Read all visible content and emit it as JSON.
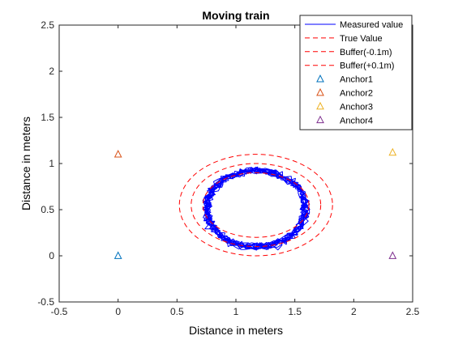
{
  "chart_data": {
    "type": "line",
    "title": "Moving train",
    "xlabel": "Distance in meters",
    "ylabel": "Distance in meters",
    "xlim": [
      -0.5,
      2.5
    ],
    "ylim": [
      -0.5,
      2.5
    ],
    "xticks": [
      "-0.5",
      "0",
      "0.5",
      "1",
      "1.5",
      "2",
      "2.5"
    ],
    "yticks": [
      "-0.5",
      "0",
      "0.5",
      "1",
      "1.5",
      "2",
      "2.5"
    ],
    "grid": false,
    "legend_position": "top-right",
    "series": [
      {
        "name": "Measured value",
        "kind": "trajectory",
        "color": "#0000ff",
        "center": [
          1.17,
          0.51
        ],
        "radius_x": 0.42,
        "radius_y": 0.41,
        "laps": 14
      },
      {
        "name": "True Value",
        "kind": "ellipse",
        "color": "#ff0000",
        "dash": true,
        "center": [
          1.17,
          0.55
        ],
        "radius_x": 0.55,
        "radius_y": 0.45
      },
      {
        "name": "Buffer(-0.1m)",
        "kind": "ellipse",
        "color": "#ff0000",
        "dash": true,
        "center": [
          1.17,
          0.55
        ],
        "radius_x": 0.45,
        "radius_y": 0.35
      },
      {
        "name": "Buffer(+0.1m)",
        "kind": "ellipse",
        "color": "#ff0000",
        "dash": true,
        "center": [
          1.17,
          0.55
        ],
        "radius_x": 0.65,
        "radius_y": 0.55
      },
      {
        "name": "Anchor1",
        "kind": "marker",
        "color": "#0072bd",
        "x": 0,
        "y": 0
      },
      {
        "name": "Anchor2",
        "kind": "marker",
        "color": "#d95319",
        "x": 0,
        "y": 1.1
      },
      {
        "name": "Anchor3",
        "kind": "marker",
        "color": "#edb120",
        "x": 2.33,
        "y": 1.12
      },
      {
        "name": "Anchor4",
        "kind": "marker",
        "color": "#7e2f8e",
        "x": 2.33,
        "y": 0
      }
    ]
  }
}
